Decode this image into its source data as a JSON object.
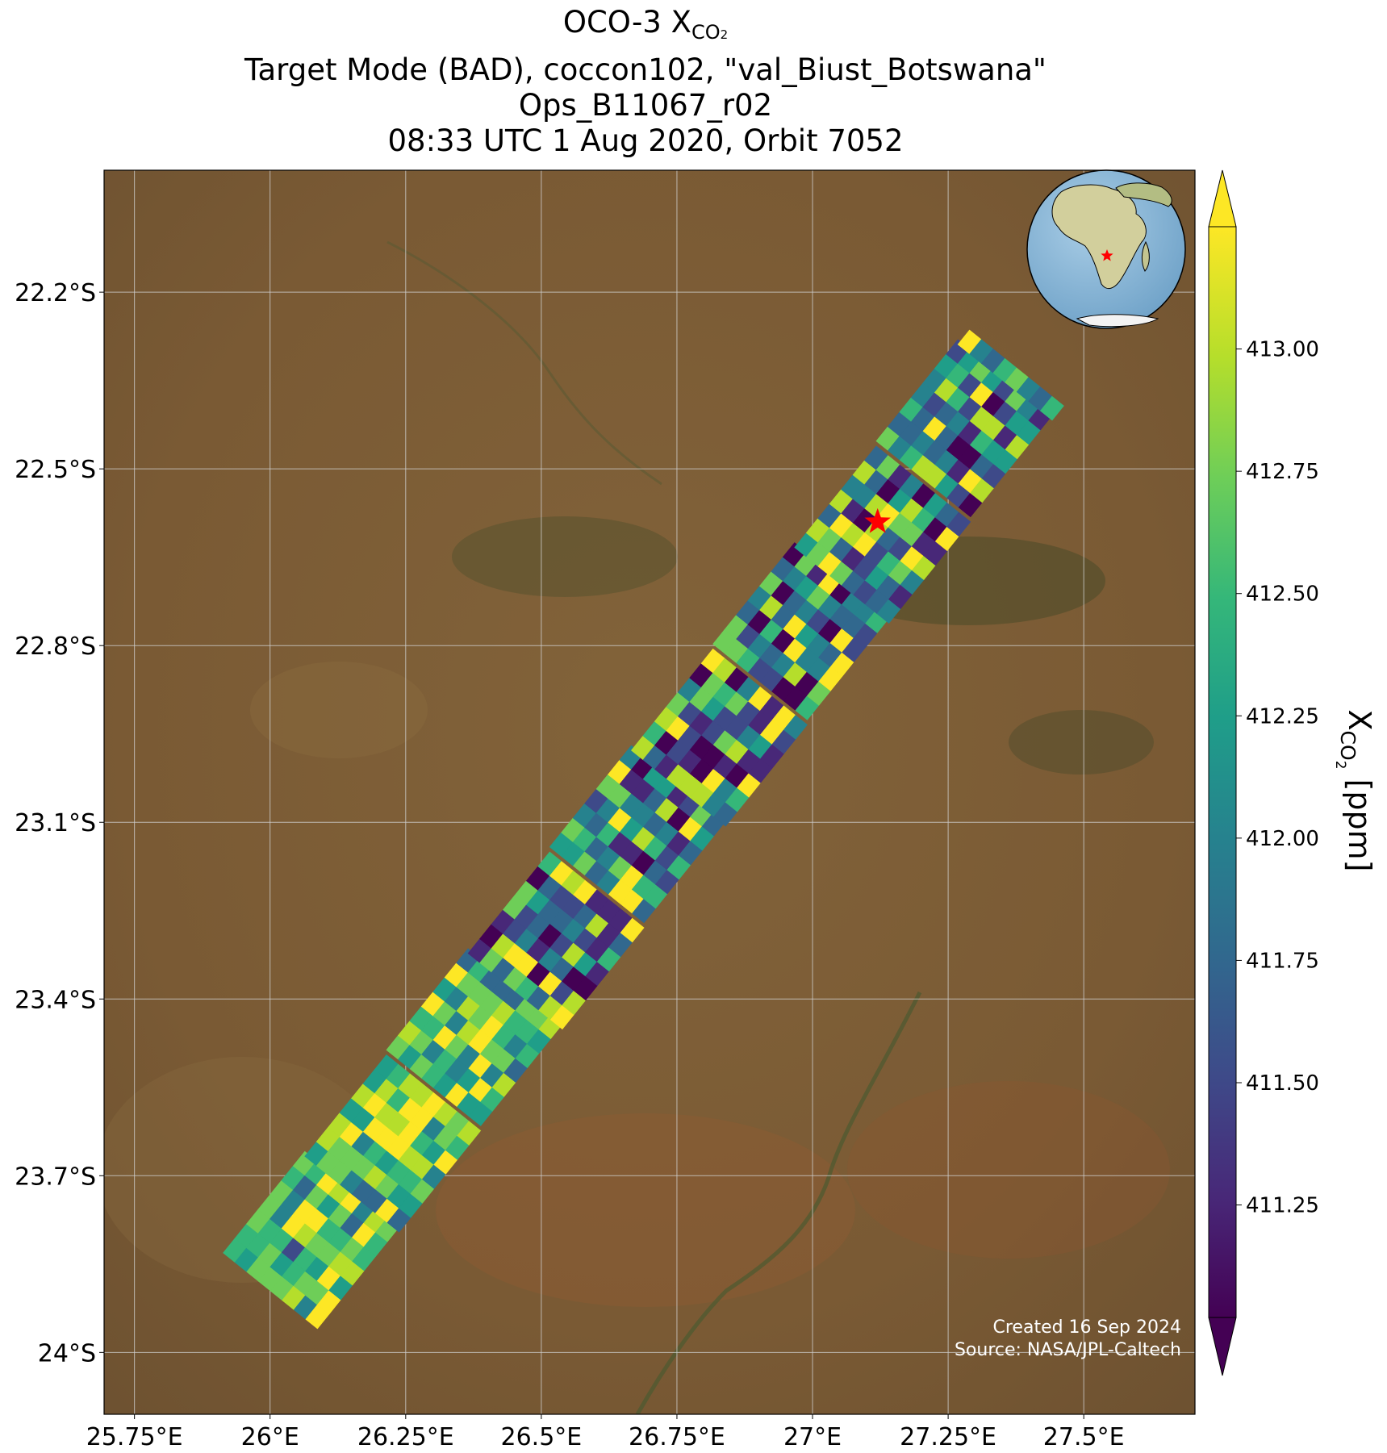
{
  "title": {
    "line1_main": "OCO-3 X",
    "line1_sub": "CO",
    "line1_subsub": "2",
    "line2": "Target Mode (BAD), coccon102, \"val_Biust_Botswana\"",
    "line3": "Ops_B11067_r02",
    "line4": "08:33 UTC 1 Aug 2020, Orbit 7052"
  },
  "map": {
    "lon_range": [
      25.694,
      27.705
    ],
    "lat_range": [
      -24.105,
      -21.993
    ],
    "x_ticks": [
      {
        "value": 25.75,
        "label": "25.75°E"
      },
      {
        "value": 26.0,
        "label": "26°E"
      },
      {
        "value": 26.25,
        "label": "26.25°E"
      },
      {
        "value": 26.5,
        "label": "26.5°E"
      },
      {
        "value": 26.75,
        "label": "26.75°E"
      },
      {
        "value": 27.0,
        "label": "27°E"
      },
      {
        "value": 27.25,
        "label": "27.25°E"
      },
      {
        "value": 27.5,
        "label": "27.5°E"
      }
    ],
    "y_ticks": [
      {
        "value": -22.2,
        "label": "22.2°S"
      },
      {
        "value": -22.5,
        "label": "22.5°S"
      },
      {
        "value": -22.8,
        "label": "22.8°S"
      },
      {
        "value": -23.1,
        "label": "23.1°S"
      },
      {
        "value": -23.4,
        "label": "23.4°S"
      },
      {
        "value": -23.7,
        "label": "23.7°S"
      },
      {
        "value": -24.0,
        "label": "24°S"
      }
    ],
    "site_marker": {
      "lon": 27.12,
      "lat": -22.59,
      "color": "#ff0000"
    },
    "credit_line1": "Created 16 Sep 2024",
    "credit_line2": "Source: NASA/JPL-Caltech"
  },
  "colorbar": {
    "colormap": "viridis",
    "range": [
      411.02,
      413.25
    ],
    "ticks": [
      {
        "value": 413.0,
        "label": "413.00"
      },
      {
        "value": 412.75,
        "label": "412.75"
      },
      {
        "value": 412.5,
        "label": "412.50"
      },
      {
        "value": 412.25,
        "label": "412.25"
      },
      {
        "value": 412.0,
        "label": "412.00"
      },
      {
        "value": 411.75,
        "label": "411.75"
      },
      {
        "value": 411.5,
        "label": "411.50"
      },
      {
        "value": 411.25,
        "label": "411.25"
      }
    ],
    "label_main": "X",
    "label_sub": "CO",
    "label_subsub": "2",
    "label_unit": " [ppm]"
  },
  "colors": {
    "satellite_base": "#7a5a34",
    "grid": "#cfcfcf",
    "viridis": [
      "#440154",
      "#482878",
      "#3e4a89",
      "#31688e",
      "#26828e",
      "#1f9e89",
      "#35b779",
      "#6ece58",
      "#b5de2b",
      "#fde725"
    ]
  }
}
